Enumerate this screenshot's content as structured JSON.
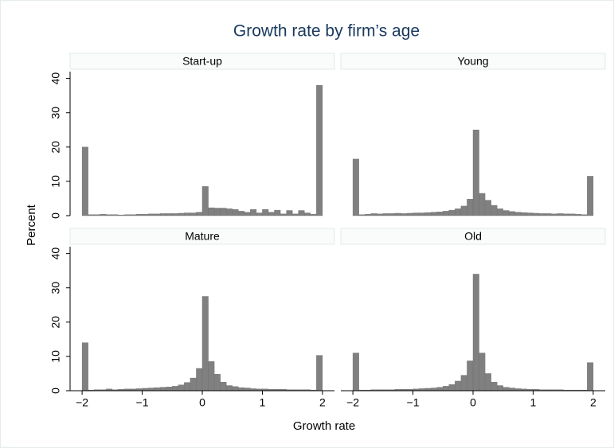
{
  "chart_data": {
    "type": "histogram",
    "title": "Growth rate by firm’s age",
    "x_label": "Growth rate",
    "y_label": "Percent",
    "color": "#808080",
    "bins": [
      -2,
      -1.9,
      -1.8,
      -1.7,
      -1.6,
      -1.5,
      -1.4,
      -1.3,
      -1.2,
      -1.1,
      -1,
      -0.9,
      -0.8,
      -0.7,
      -0.6,
      -0.5,
      -0.4,
      -0.3,
      -0.2,
      -0.1,
      0,
      0.1,
      0.2,
      0.3,
      0.4,
      0.5,
      0.6,
      0.7,
      0.8,
      0.9,
      1,
      1.1,
      1.2,
      1.3,
      1.4,
      1.5,
      1.6,
      1.7,
      1.8,
      1.9,
      2
    ],
    "xlim": [
      -2.2,
      2.2
    ],
    "xticks": [
      {
        "value": -2,
        "label": "−2"
      },
      {
        "value": -1,
        "label": "−1"
      },
      0,
      1,
      2
    ],
    "ylim": [
      0,
      42
    ],
    "yticks": [
      0,
      10,
      20,
      30,
      40
    ],
    "panels": [
      {
        "title": "Start-up",
        "values": [
          20,
          0.3,
          0.3,
          0.4,
          0.3,
          0.3,
          0.2,
          0.3,
          0.3,
          0.4,
          0.4,
          0.5,
          0.5,
          0.6,
          0.6,
          0.6,
          0.7,
          0.8,
          0.8,
          1.0,
          8.5,
          2.3,
          2.2,
          2.2,
          2.0,
          1.8,
          1.3,
          1.0,
          1.8,
          0.8,
          1.8,
          1.0,
          1.6,
          0.5,
          1.5,
          0.5,
          1.5,
          0.8,
          0.4,
          38
        ]
      },
      {
        "title": "Young",
        "values": [
          16.5,
          0.3,
          0.4,
          0.6,
          0.5,
          0.6,
          0.6,
          0.7,
          0.6,
          0.7,
          0.8,
          0.8,
          0.9,
          1.0,
          1.1,
          1.3,
          1.6,
          2.0,
          2.8,
          4.8,
          25,
          6.5,
          4.5,
          3.0,
          2.0,
          1.5,
          1.2,
          1.0,
          0.9,
          0.8,
          0.7,
          0.6,
          0.6,
          0.5,
          0.6,
          0.5,
          0.5,
          0.4,
          0.3,
          11.5
        ]
      },
      {
        "title": "Mature",
        "values": [
          14,
          0.2,
          0.3,
          0.3,
          0.5,
          0.3,
          0.4,
          0.5,
          0.5,
          0.6,
          0.7,
          0.8,
          0.9,
          1.0,
          1.1,
          1.3,
          1.7,
          2.4,
          3.7,
          6.5,
          27.5,
          8.5,
          4.8,
          2.5,
          1.5,
          1.2,
          0.9,
          0.8,
          0.6,
          0.5,
          0.5,
          0.4,
          0.4,
          0.4,
          0.3,
          0.3,
          0.3,
          0.3,
          0.2,
          10.3
        ]
      },
      {
        "title": "Old",
        "values": [
          11,
          0.2,
          0.2,
          0.3,
          0.3,
          0.3,
          0.3,
          0.4,
          0.4,
          0.4,
          0.5,
          0.6,
          0.7,
          0.8,
          1.0,
          1.3,
          1.8,
          2.8,
          4.5,
          8.7,
          34,
          11,
          5,
          2.5,
          1.5,
          1.0,
          0.8,
          0.6,
          0.5,
          0.4,
          0.4,
          0.3,
          0.3,
          0.3,
          0.3,
          0.2,
          0.2,
          0.2,
          0.2,
          8.2
        ]
      }
    ]
  }
}
